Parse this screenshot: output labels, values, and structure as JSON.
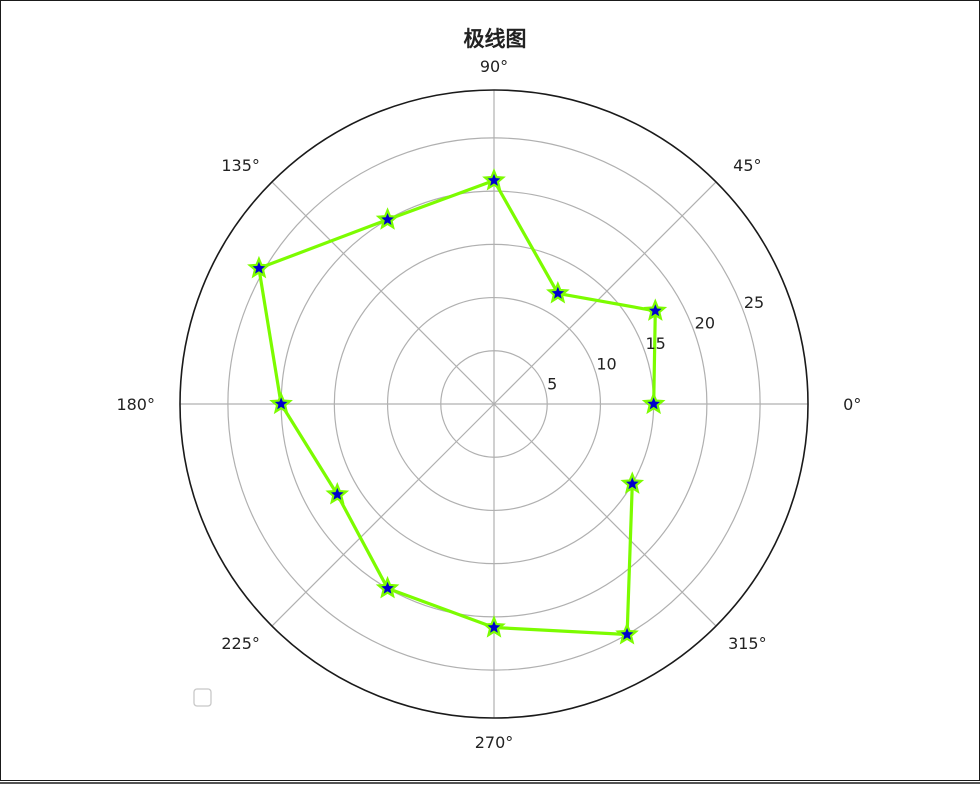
{
  "chart_data": {
    "type": "line",
    "projection": "polar",
    "title": "极线图",
    "angle_unit": "degrees",
    "theta_ticks": [
      0,
      45,
      90,
      135,
      180,
      225,
      270,
      315
    ],
    "theta_tick_labels": [
      "0°",
      "45°",
      "90°",
      "135°",
      "180°",
      "225°",
      "270°",
      "315°"
    ],
    "r_ticks": [
      5,
      10,
      15,
      20,
      25
    ],
    "r_tick_labels": [
      "5",
      "10",
      "15",
      "20",
      "25"
    ],
    "rlim": [
      0,
      29.5
    ],
    "grid": true,
    "series": [
      {
        "theta": [
          0,
          30,
          60,
          90,
          120,
          150,
          180,
          210,
          240,
          270,
          300,
          330
        ],
        "r": [
          15,
          17.5,
          12,
          21,
          20,
          25.5,
          20,
          17,
          20,
          21,
          25,
          15
        ],
        "line_color": "#7cfc00",
        "marker": "star",
        "marker_face_color": "#0000cd",
        "marker_edge_color": "#7cfc00"
      }
    ],
    "legend": {
      "position": "lower-left",
      "entries": []
    }
  }
}
